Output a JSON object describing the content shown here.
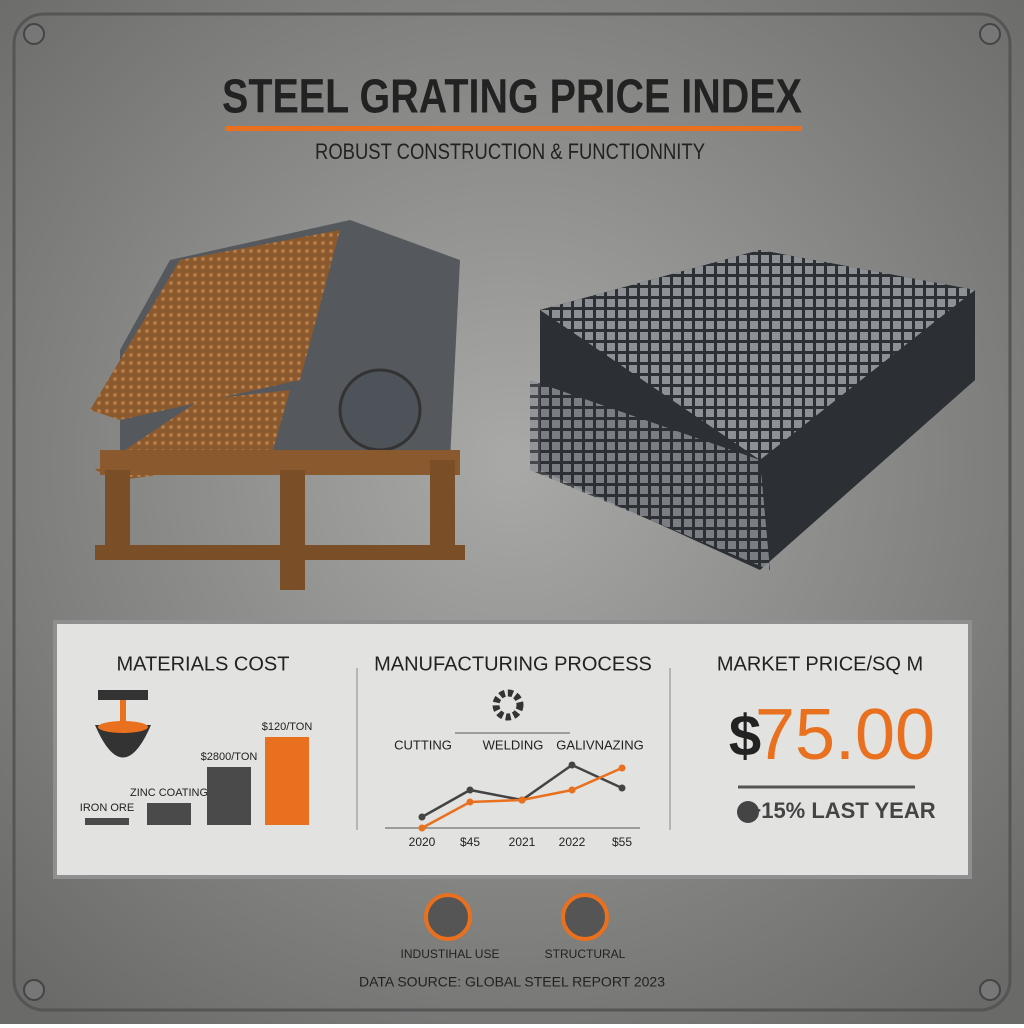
{
  "header": {
    "title": "STEEL GRATING PRICE INDEX",
    "subtitle": "ROBUST CONSTRUCTION & FUNCTIONNITY"
  },
  "materials": {
    "title": "MATERIALS COST",
    "type": "bar",
    "categories": [
      "IRON ORE",
      "ZINC COATING",
      "$2800/TON",
      "$120/TON"
    ],
    "values": [
      7,
      22,
      58,
      88
    ],
    "colors": [
      "#4a4a4a",
      "#4a4a4a",
      "#4a4a4a",
      "#e8701e"
    ],
    "ylim": [
      0,
      100
    ]
  },
  "process": {
    "title": "MANUFACTURING PROCESS",
    "steps": [
      "CUTTING",
      "WELDING",
      "GALIVNAZING"
    ],
    "type": "line",
    "categories": [
      "2020",
      "$45",
      "2021",
      "2022",
      "$55"
    ],
    "series": [
      {
        "color": "#444444",
        "values": [
          11,
          38,
          28,
          63,
          40
        ]
      },
      {
        "color": "#e8701e",
        "values": [
          0,
          26,
          28,
          38,
          60
        ]
      }
    ],
    "ylim": [
      0,
      70
    ]
  },
  "market": {
    "title": "MARKET PRICE/SQ M",
    "currency": "$",
    "price": "75.00",
    "change": "+15% LAST YEAR"
  },
  "footer": {
    "icons": [
      "INDUSTIHAL USE",
      "STRUCTURAL"
    ],
    "source": "DATA SOURCE: GLOBAL STEEL REPORT 2023"
  }
}
